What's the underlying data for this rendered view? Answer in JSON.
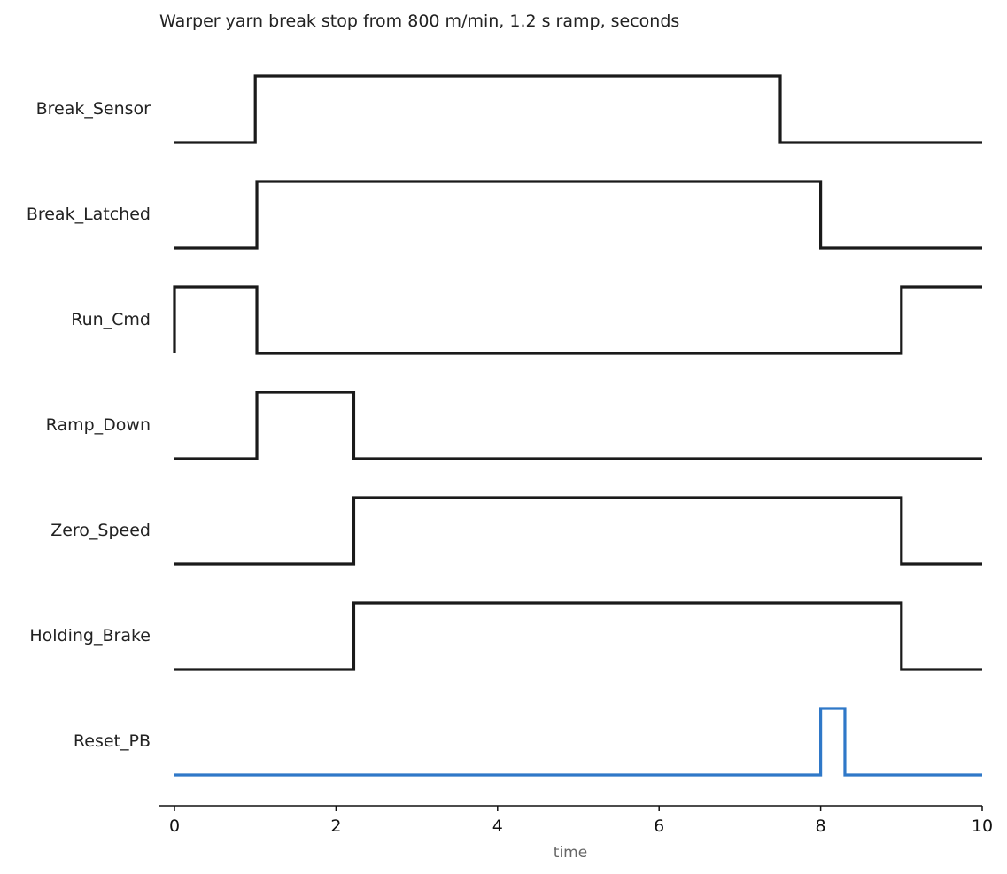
{
  "chart_data": {
    "type": "line",
    "subtype": "digital-timing-diagram",
    "title": "Warper yarn break stop from 800 m/min, 1.2 s ramp, seconds",
    "xlabel": "time",
    "ylabel": "",
    "xlim": [
      0,
      10
    ],
    "xticks": [
      0,
      2,
      4,
      6,
      8,
      10
    ],
    "grid": false,
    "legend": "none",
    "colors": {
      "default": "#1a1a1a",
      "highlight": "#2f78c8"
    },
    "series": [
      {
        "name": "Break_Sensor",
        "color": "#1a1a1a",
        "initial": 0,
        "edges": [
          1.0,
          7.5
        ]
      },
      {
        "name": "Break_Latched",
        "color": "#1a1a1a",
        "initial": 0,
        "edges": [
          1.02,
          8.0
        ]
      },
      {
        "name": "Run_Cmd",
        "color": "#1a1a1a",
        "initial": 1,
        "edges": [
          1.02,
          9.0
        ]
      },
      {
        "name": "Ramp_Down",
        "color": "#1a1a1a",
        "initial": 0,
        "edges": [
          1.02,
          2.22
        ]
      },
      {
        "name": "Zero_Speed",
        "color": "#1a1a1a",
        "initial": 0,
        "edges": [
          2.22,
          9.0
        ]
      },
      {
        "name": "Holding_Brake",
        "color": "#1a1a1a",
        "initial": 0,
        "edges": [
          2.22,
          9.0
        ]
      },
      {
        "name": "Reset_PB",
        "color": "#2f78c8",
        "initial": 0,
        "edges": [
          8.0,
          8.3
        ]
      }
    ]
  }
}
